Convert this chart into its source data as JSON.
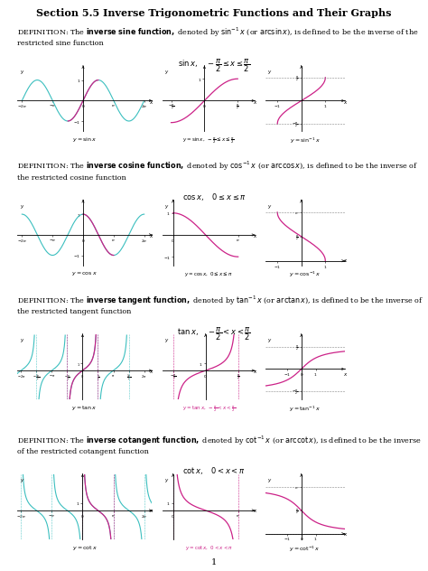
{
  "title": "Section 5.5 Inverse Trigonometric Functions and Their Graphs",
  "bg_color": "#ffffff",
  "cyan_color": "#3bbfbf",
  "magenta_color": "#cc2288",
  "page_number": "1",
  "sections": [
    {
      "name": "sine",
      "def1": "DEFINITION: The ",
      "bold": "inverse sine function,",
      "def2": " denoted by $\\sin^{-1}x$ (or $\\arcsin x$), is defined to be the inverse of the restricted sine function",
      "formula": "$\\sin x, \\quad -\\dfrac{\\pi}{2} \\leq x \\leq \\dfrac{\\pi}{2}$",
      "cap1": "$y = \\sin x$",
      "cap2": "$y = \\sin x,\\ -\\frac{\\pi}{2} \\leq x \\leq \\frac{\\pi}{2}$",
      "cap3": "$y = \\sin^{-1}x$"
    },
    {
      "name": "cosine",
      "def1": "DEFINITION: The ",
      "bold": "inverse cosine function,",
      "def2": " denoted by $\\cos^{-1}x$ (or $\\arccos x$), is defined to be the inverse of the restricted cosine function",
      "formula": "$\\cos x, \\quad 0 \\leq x \\leq \\pi$",
      "cap1": "$y = \\cos x$",
      "cap2": "$y = \\cos x,\\ 0 \\leq x \\leq \\pi$",
      "cap3": "$y = \\cos^{-1}x$"
    },
    {
      "name": "tangent",
      "def1": "DEFINITION: The ",
      "bold": "inverse tangent function,",
      "def2": " denoted by $\\tan^{-1}x$ (or $\\arctan x$), is defined to be the inverse of the restricted tangent function",
      "formula": "$\\tan x, \\quad -\\dfrac{\\pi}{2} < x < \\dfrac{\\pi}{2}$",
      "cap1": "$y = \\tan x$",
      "cap2": "$y = \\tan x,\\ -\\frac{\\pi}{2} < x < \\frac{\\pi}{2}$",
      "cap3": "$y = \\tan^{-1}x$"
    },
    {
      "name": "cotangent",
      "def1": "DEFINITION: The ",
      "bold": "inverse cotangent function,",
      "def2": " denoted by $\\cot^{-1}x$ (or $\\text{arccot}\\, x$), is defined to be the inverse of the restricted cotangent function",
      "formula": "$\\cot x, \\quad 0 < x < \\pi$",
      "cap1": "$y = \\cot x$",
      "cap2": "$y = \\cot x,\\ 0 < x < \\pi$",
      "cap3": "$y = \\cot^{-1}x$"
    }
  ]
}
